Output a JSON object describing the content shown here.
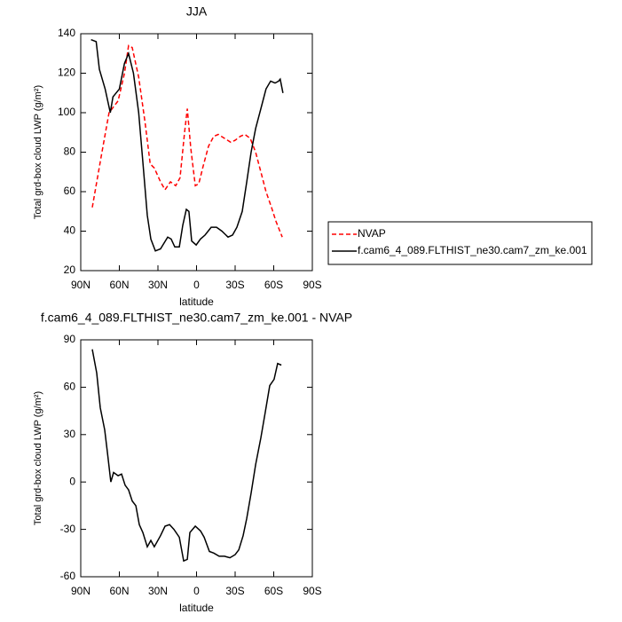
{
  "chart_data": [
    {
      "type": "line",
      "title": "JJA",
      "xlabel": "latitude",
      "ylabel": "Total grd-box cloud LWP (g/m²)",
      "xlim": [
        90,
        -90
      ],
      "xticks": [
        {
          "value": 90,
          "label": "90N"
        },
        {
          "value": 60,
          "label": "60N"
        },
        {
          "value": 30,
          "label": "30N"
        },
        0,
        {
          "value": -30,
          "label": "30S"
        },
        {
          "value": -60,
          "label": "60S"
        },
        {
          "value": -90,
          "label": "90S"
        }
      ],
      "ylim": [
        20,
        140
      ],
      "yticks": [
        20,
        40,
        60,
        80,
        100,
        120,
        140
      ],
      "legend": "right",
      "series": [
        {
          "name": "NVAP",
          "color": "#ff0000",
          "dash": "dashed",
          "x": [
            81,
            73.5,
            68,
            61,
            56,
            52.8,
            50,
            45,
            40,
            36,
            32.8,
            28,
            24.5,
            20.3,
            16.2,
            12.8,
            9.3,
            7.2,
            4.5,
            1,
            -1.7,
            -5.2,
            -9.3,
            -13.4,
            -16.9,
            -21.7,
            -26.6,
            -30,
            -34,
            -37.6,
            -41.7,
            -45.9,
            -50,
            -54,
            -58.3,
            -61.7,
            -66.6
          ],
          "values": [
            52,
            80,
            100,
            106,
            120,
            134,
            133,
            118,
            95,
            74,
            72,
            65,
            61,
            65,
            63,
            67,
            90,
            102,
            82,
            63,
            64,
            73,
            83,
            88,
            89,
            87,
            85,
            86,
            88,
            89,
            87,
            80,
            70,
            60,
            52,
            45,
            37
          ]
        },
        {
          "name": "f.cam6_4_089.FLTHIST_ne30.cam7_zm_ke.001",
          "color": "#000000",
          "dash": "solid",
          "x": [
            82,
            78,
            75.5,
            71,
            67,
            65,
            60,
            56,
            52.8,
            49,
            45,
            41.7,
            38.3,
            35.5,
            32,
            28,
            22.4,
            19.7,
            16.9,
            13.4,
            10.7,
            7.9,
            5.9,
            3.8,
            0.3,
            -3,
            -6.6,
            -11.4,
            -15.5,
            -19.7,
            -24.5,
            -28,
            -31.4,
            -35.5,
            -39,
            -42.4,
            -45.9,
            -50,
            -54,
            -57.6,
            -61,
            -63.8,
            -65,
            -67.2
          ],
          "values": [
            137,
            136,
            122,
            112,
            100,
            108,
            112,
            125,
            130,
            120,
            100,
            75,
            48,
            36,
            30,
            31,
            37,
            36,
            32,
            32,
            43,
            51,
            50,
            35,
            33,
            36,
            38,
            42,
            42,
            40,
            37,
            38,
            42,
            50,
            65,
            80,
            92,
            102,
            112,
            116,
            115,
            116,
            117,
            110
          ]
        }
      ]
    },
    {
      "type": "line",
      "title": "f.cam6_4_089.FLTHIST_ne30.cam7_zm_ke.001 - NVAP",
      "xlabel": "latitude",
      "ylabel": "Total grd-box cloud LWP (g/m²)",
      "xlim": [
        90,
        -90
      ],
      "xticks": [
        {
          "value": 90,
          "label": "90N"
        },
        {
          "value": 60,
          "label": "60N"
        },
        {
          "value": 30,
          "label": "30N"
        },
        0,
        {
          "value": -30,
          "label": "30S"
        },
        {
          "value": -60,
          "label": "60S"
        },
        {
          "value": -90,
          "label": "90S"
        }
      ],
      "ylim": [
        -60,
        90
      ],
      "yticks": [
        -60,
        -30,
        0,
        30,
        60,
        90
      ],
      "series": [
        {
          "color": "#000000",
          "dash": "solid",
          "x": [
            81,
            77.6,
            74.8,
            71.4,
            69.3,
            66.6,
            64.5,
            61,
            58.3,
            55.5,
            52.8,
            50,
            47.2,
            44.5,
            41.7,
            38.3,
            35.5,
            32.8,
            28,
            24.5,
            21,
            17.6,
            13.4,
            10,
            7.2,
            5.2,
            1,
            -3.1,
            -5.9,
            -10,
            -13.4,
            -17.6,
            -21.7,
            -25.9,
            -30,
            -32.8,
            -36.2,
            -39,
            -42.4,
            -45.9,
            -50,
            -53.4,
            -56.9,
            -60.3,
            -63,
            -65.9
          ],
          "values": [
            84,
            69,
            47,
            33,
            19,
            0,
            6,
            4,
            5,
            -2,
            -5,
            -12,
            -15,
            -27,
            -32,
            -41,
            -37,
            -41,
            -34,
            -28,
            -27,
            -30,
            -35,
            -50,
            -49,
            -32,
            -28,
            -31,
            -35,
            -44,
            -45,
            -47,
            -47,
            -48,
            -46,
            -43,
            -34,
            -23,
            -7,
            11,
            28,
            44,
            61,
            65,
            75,
            74
          ]
        }
      ]
    }
  ]
}
